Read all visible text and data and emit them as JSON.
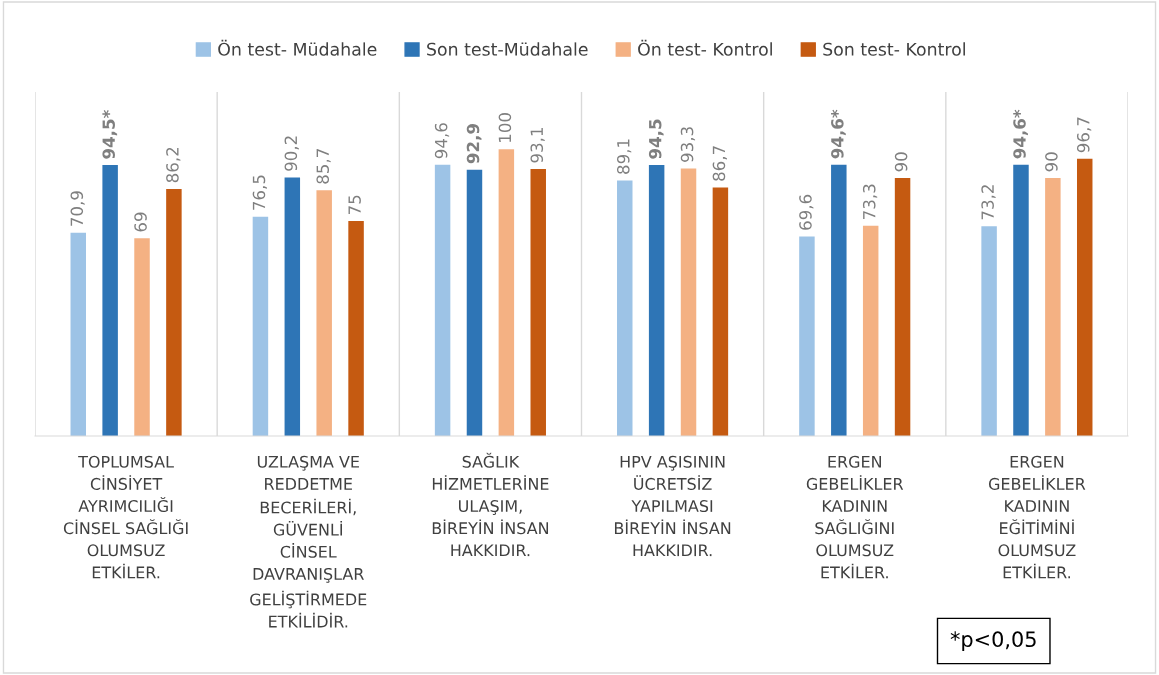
{
  "chart_data": {
    "type": "bar",
    "categories": [
      "TOPLUMSAL\nCİNSİYET\nAYRIMCILIĞI\nCİNSEL SAĞLIĞI\nOLUMSUZ\nETKİLER.",
      "UZLAŞMA VE\nREDDETME\nBECERİLERİ,\nGÜVENLİ\nCİNSEL\nDAVRANIŞLAR\nGELİŞTİRMEDE\nETKİLİDİR.",
      "SAĞLIK\nHİZMETLERİNE\nULAŞIM,\nBİREYİN İNSAN\nHAKKIDIR.",
      "HPV AŞISININ\nÜCRETSİZ\nYAPILMASI\nBİREYİN İNSAN\nHAKKIDIR.",
      "ERGEN\nGEBELİKLER\nKADININ\nSAĞLIĞINI\nOLUMSUZ\nETKİLER.",
      "ERGEN\nGEBELİKLER\nKADININ\nEĞİTİMİNİ\nOLUMSUZ\nETKİLER."
    ],
    "series": [
      {
        "name": "Ön test- Müdahale",
        "color": "#9dc3e6",
        "values": [
          70.9,
          76.5,
          94.6,
          89.1,
          69.6,
          73.2
        ],
        "value_labels": [
          "70,9",
          "76,5",
          "94,6",
          "89,1",
          "69,6",
          "73,2"
        ]
      },
      {
        "name": "Son test-Müdahale",
        "color": "#2e75b6",
        "values": [
          94.5,
          90.2,
          92.9,
          94.5,
          94.6,
          94.6
        ],
        "value_labels": [
          "94,5*",
          "90,2",
          "92,9",
          "94,5",
          "94,6*",
          "94,6*"
        ]
      },
      {
        "name": "Ön test- Kontrol",
        "color": "#f4b183",
        "values": [
          69,
          85.7,
          100,
          93.3,
          73.3,
          90
        ],
        "value_labels": [
          "69",
          "85,7",
          "100",
          "93,3",
          "73,3",
          "90"
        ]
      },
      {
        "name": "Son test- Kontrol",
        "color": "#c55a11",
        "values": [
          86.2,
          75,
          93.1,
          86.7,
          90,
          96.7
        ],
        "value_labels": [
          "86,2",
          "75",
          "93,1",
          "86,7",
          "90",
          "96,7"
        ]
      }
    ],
    "ylim": [
      0,
      120
    ],
    "tick_labels": "x",
    "grid": "x",
    "legend": "top",
    "annotations": [
      "*p<0,05"
    ]
  }
}
